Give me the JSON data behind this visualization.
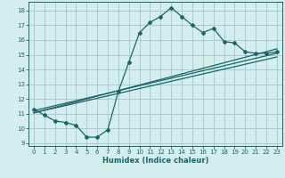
{
  "xlabel": "Humidex (Indice chaleur)",
  "ylabel": "",
  "bg_color": "#d4eeee",
  "grid_color": "#aacccc",
  "line_color": "#1a6666",
  "xlim": [
    -0.5,
    23.5
  ],
  "ylim": [
    8.8,
    18.6
  ],
  "yticks": [
    9,
    10,
    11,
    12,
    13,
    14,
    15,
    16,
    17,
    18
  ],
  "xticks": [
    0,
    1,
    2,
    3,
    4,
    5,
    6,
    7,
    8,
    9,
    10,
    11,
    12,
    13,
    14,
    15,
    16,
    17,
    18,
    19,
    20,
    21,
    22,
    23
  ],
  "curve1_x": [
    0,
    1,
    2,
    3,
    4,
    5,
    6,
    7,
    8,
    9,
    10,
    11,
    12,
    13,
    14,
    15,
    16,
    17,
    18,
    19,
    20,
    21,
    22,
    23
  ],
  "curve1_y": [
    11.3,
    10.9,
    10.5,
    10.4,
    10.2,
    9.4,
    9.4,
    9.9,
    12.5,
    14.5,
    16.5,
    17.2,
    17.6,
    18.2,
    17.6,
    17.0,
    16.5,
    16.8,
    15.9,
    15.8,
    15.2,
    15.1,
    15.1,
    15.2
  ],
  "line2_x": [
    0,
    23
  ],
  "line2_y": [
    11.05,
    15.4
  ],
  "line3_x": [
    0,
    23
  ],
  "line3_y": [
    11.05,
    14.85
  ],
  "line4_x": [
    0,
    23
  ],
  "line4_y": [
    11.2,
    15.1
  ],
  "xlabel_fontsize": 6.0,
  "tick_fontsize": 5.0
}
